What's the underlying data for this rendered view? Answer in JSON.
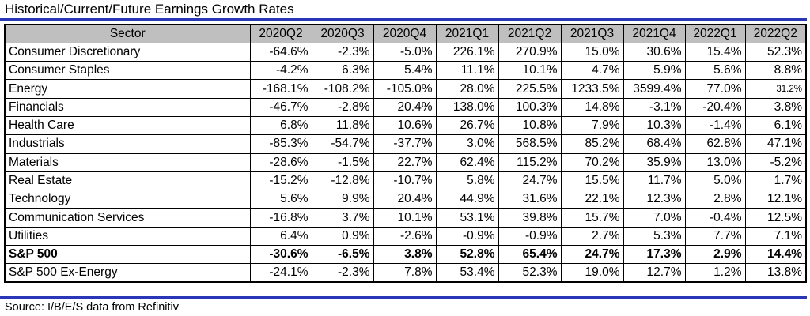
{
  "title": "Historical/Current/Future Earnings Growth Rates",
  "source": "Source: I/B/E/S data from Refinitiv",
  "table": {
    "headers": [
      "Sector",
      "2020Q2",
      "2020Q3",
      "2020Q4",
      "2021Q1",
      "2021Q2",
      "2021Q3",
      "2021Q4",
      "2022Q1",
      "2022Q2"
    ],
    "rows": [
      {
        "sector": "Consumer Discretionary",
        "values": [
          "-64.6%",
          "-2.3%",
          "-5.0%",
          "226.1%",
          "270.9%",
          "15.0%",
          "30.6%",
          "15.4%",
          "52.3%"
        ]
      },
      {
        "sector": "Consumer Staples",
        "values": [
          "-4.2%",
          "6.3%",
          "5.4%",
          "11.1%",
          "10.1%",
          "4.7%",
          "5.9%",
          "5.6%",
          "8.8%"
        ]
      },
      {
        "sector": "Energy",
        "values": [
          "-168.1%",
          "-108.2%",
          "-105.0%",
          "28.0%",
          "225.5%",
          "1233.5%",
          "3599.4%",
          "77.0%",
          "31.2%"
        ]
      },
      {
        "sector": "Financials",
        "values": [
          "-46.7%",
          "-2.8%",
          "20.4%",
          "138.0%",
          "100.3%",
          "14.8%",
          "-3.1%",
          "-20.4%",
          "3.8%"
        ]
      },
      {
        "sector": "Health Care",
        "values": [
          "6.8%",
          "11.8%",
          "10.6%",
          "26.7%",
          "10.8%",
          "7.9%",
          "10.3%",
          "-1.4%",
          "6.1%"
        ]
      },
      {
        "sector": "Industrials",
        "values": [
          "-85.3%",
          "-54.7%",
          "-37.7%",
          "3.0%",
          "568.5%",
          "85.2%",
          "68.4%",
          "62.8%",
          "47.1%"
        ]
      },
      {
        "sector": "Materials",
        "values": [
          "-28.6%",
          "-1.5%",
          "22.7%",
          "62.4%",
          "115.2%",
          "70.2%",
          "35.9%",
          "13.0%",
          "-5.2%"
        ]
      },
      {
        "sector": "Real Estate",
        "values": [
          "-15.2%",
          "-12.8%",
          "-10.7%",
          "5.8%",
          "24.7%",
          "15.5%",
          "11.7%",
          "5.0%",
          "1.7%"
        ]
      },
      {
        "sector": "Technology",
        "values": [
          "5.6%",
          "9.9%",
          "20.4%",
          "44.9%",
          "31.6%",
          "22.1%",
          "12.3%",
          "2.8%",
          "12.1%"
        ]
      },
      {
        "sector": "Communication Services",
        "values": [
          "-16.8%",
          "3.7%",
          "10.1%",
          "53.1%",
          "39.8%",
          "15.7%",
          "7.0%",
          "-0.4%",
          "12.5%"
        ]
      },
      {
        "sector": "Utilities",
        "values": [
          "6.4%",
          "0.9%",
          "-2.6%",
          "-0.9%",
          "-0.9%",
          "2.7%",
          "5.3%",
          "7.7%",
          "7.1%"
        ]
      },
      {
        "sector": "S&P 500",
        "values": [
          "-30.6%",
          "-6.5%",
          "3.8%",
          "52.8%",
          "65.4%",
          "24.7%",
          "17.3%",
          "2.9%",
          "14.4%"
        ]
      },
      {
        "sector": "S&P 500 Ex-Energy",
        "values": [
          "-24.1%",
          "-2.3%",
          "7.8%",
          "53.4%",
          "52.3%",
          "19.0%",
          "12.7%",
          "1.2%",
          "13.8%"
        ]
      }
    ]
  },
  "colors": {
    "header_bg": "#bfbfbf",
    "rule": "#2a36b8"
  }
}
